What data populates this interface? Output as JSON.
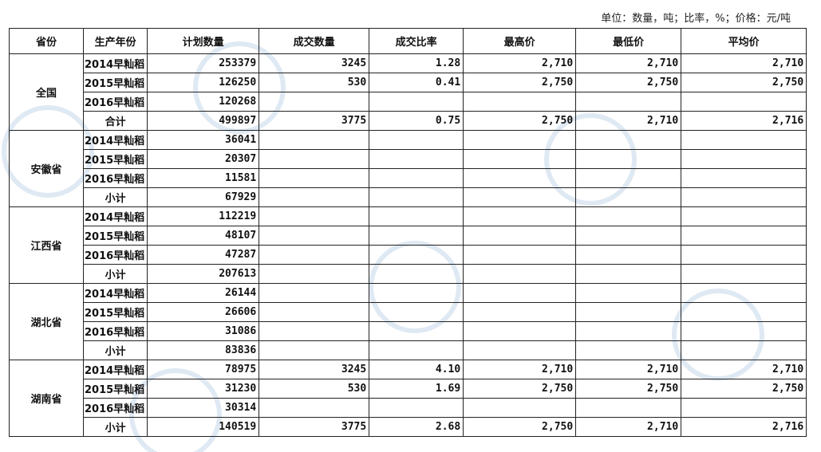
{
  "unit_note": "单位：数量，吨；比率，%；价格：元/吨",
  "columns": [
    "省份",
    "生产年份",
    "计划数量",
    "成交数量",
    "成交比率",
    "最高价",
    "最低价",
    "平均价"
  ],
  "groups": [
    {
      "province": "全国",
      "rows": [
        {
          "year": "2014早籼稻",
          "plan": "253379",
          "deal": "3245",
          "ratio": "1.28",
          "high": "2,710",
          "low": "2,710",
          "avg": "2,710"
        },
        {
          "year": "2015早籼稻",
          "plan": "126250",
          "deal": "530",
          "ratio": "0.41",
          "high": "2,750",
          "low": "2,750",
          "avg": "2,750"
        },
        {
          "year": "2016早籼稻",
          "plan": "120268",
          "deal": "",
          "ratio": "",
          "high": "",
          "low": "",
          "avg": ""
        },
        {
          "year": "合计",
          "plan": "499897",
          "deal": "3775",
          "ratio": "0.75",
          "high": "2,750",
          "low": "2,710",
          "avg": "2,716"
        }
      ]
    },
    {
      "province": "安徽省",
      "rows": [
        {
          "year": "2014早籼稻",
          "plan": "36041",
          "deal": "",
          "ratio": "",
          "high": "",
          "low": "",
          "avg": ""
        },
        {
          "year": "2015早籼稻",
          "plan": "20307",
          "deal": "",
          "ratio": "",
          "high": "",
          "low": "",
          "avg": ""
        },
        {
          "year": "2016早籼稻",
          "plan": "11581",
          "deal": "",
          "ratio": "",
          "high": "",
          "low": "",
          "avg": ""
        },
        {
          "year": "小计",
          "plan": "67929",
          "deal": "",
          "ratio": "",
          "high": "",
          "low": "",
          "avg": ""
        }
      ]
    },
    {
      "province": "江西省",
      "rows": [
        {
          "year": "2014早籼稻",
          "plan": "112219",
          "deal": "",
          "ratio": "",
          "high": "",
          "low": "",
          "avg": ""
        },
        {
          "year": "2015早籼稻",
          "plan": "48107",
          "deal": "",
          "ratio": "",
          "high": "",
          "low": "",
          "avg": ""
        },
        {
          "year": "2016早籼稻",
          "plan": "47287",
          "deal": "",
          "ratio": "",
          "high": "",
          "low": "",
          "avg": ""
        },
        {
          "year": "小计",
          "plan": "207613",
          "deal": "",
          "ratio": "",
          "high": "",
          "low": "",
          "avg": ""
        }
      ]
    },
    {
      "province": "湖北省",
      "rows": [
        {
          "year": "2014早籼稻",
          "plan": "26144",
          "deal": "",
          "ratio": "",
          "high": "",
          "low": "",
          "avg": ""
        },
        {
          "year": "2015早籼稻",
          "plan": "26606",
          "deal": "",
          "ratio": "",
          "high": "",
          "low": "",
          "avg": ""
        },
        {
          "year": "2016早籼稻",
          "plan": "31086",
          "deal": "",
          "ratio": "",
          "high": "",
          "low": "",
          "avg": ""
        },
        {
          "year": "小计",
          "plan": "83836",
          "deal": "",
          "ratio": "",
          "high": "",
          "low": "",
          "avg": ""
        }
      ]
    },
    {
      "province": "湖南省",
      "rows": [
        {
          "year": "2014早籼稻",
          "plan": "78975",
          "deal": "3245",
          "ratio": "4.10",
          "high": "2,710",
          "low": "2,710",
          "avg": "2,710"
        },
        {
          "year": "2015早籼稻",
          "plan": "31230",
          "deal": "530",
          "ratio": "1.69",
          "high": "2,750",
          "low": "2,750",
          "avg": "2,750"
        },
        {
          "year": "2016早籼稻",
          "plan": "30314",
          "deal": "",
          "ratio": "",
          "high": "",
          "low": "",
          "avg": ""
        },
        {
          "year": "小计",
          "plan": "140519",
          "deal": "3775",
          "ratio": "2.68",
          "high": "2,750",
          "low": "2,710",
          "avg": "2,716"
        }
      ]
    }
  ]
}
